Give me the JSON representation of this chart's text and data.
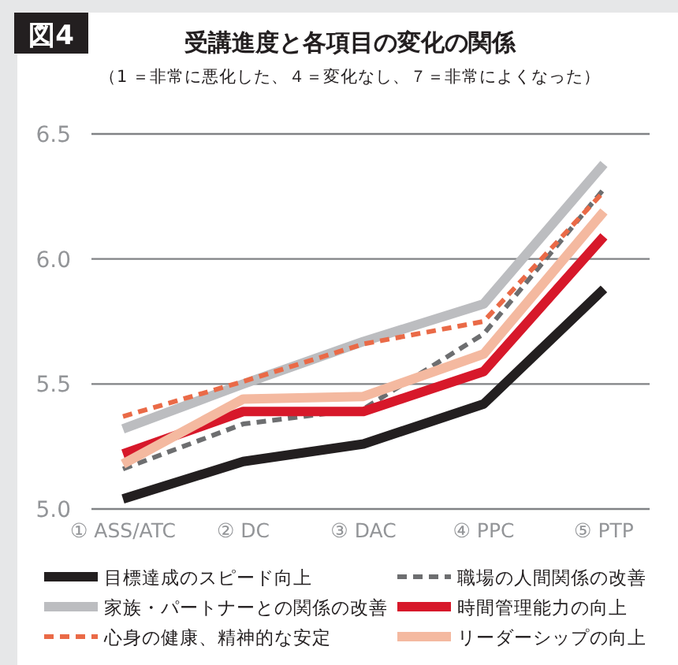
{
  "chart_data": {
    "type": "line",
    "title": "受講進度と各項目の変化の関係",
    "subtitle": "（1 ＝非常に悪化した、４＝変化なし、７＝非常によくなった）",
    "annotations": [
      "図4"
    ],
    "categories": [
      "① ASS/ATC",
      "② DC",
      "③ DAC",
      "④ PPC",
      "⑤ PTP"
    ],
    "ylim": [
      5.0,
      6.5
    ],
    "yticks": [
      {
        "value": 5.0,
        "label": "5.0"
      },
      {
        "value": 5.5,
        "label": "5.5"
      },
      {
        "value": 6.0,
        "label": "6.0"
      },
      {
        "value": 6.5,
        "label": "6.5"
      }
    ],
    "grid": "y",
    "legend": "bottom",
    "marker": "none",
    "series": [
      {
        "name": "目標達成のスピード向上",
        "color": "#231f20",
        "line_style": "solid",
        "values": [
          5.04,
          5.19,
          5.26,
          5.42,
          5.88
        ]
      },
      {
        "name": "職場の人間関係の改善",
        "color": "#6d6e70",
        "line_style": "dashed",
        "values": [
          5.16,
          5.34,
          5.4,
          5.7,
          6.28
        ]
      },
      {
        "name": "家族・パートナーとの関係の改善",
        "color": "#bcbdc0",
        "line_style": "solid",
        "values": [
          5.32,
          5.5,
          5.67,
          5.82,
          6.38
        ]
      },
      {
        "name": "時間管理能力の向上",
        "color": "#d7182a",
        "line_style": "solid",
        "values": [
          5.22,
          5.39,
          5.39,
          5.55,
          6.09
        ]
      },
      {
        "name": "心身の健康、精神的な安定",
        "color": "#ea6a47",
        "line_style": "dashed",
        "values": [
          5.37,
          5.51,
          5.66,
          5.75,
          6.27
        ]
      },
      {
        "name": "リーダーシップの向上",
        "color": "#f4b9a0",
        "line_style": "solid",
        "values": [
          5.18,
          5.44,
          5.45,
          5.62,
          6.19
        ]
      }
    ]
  }
}
